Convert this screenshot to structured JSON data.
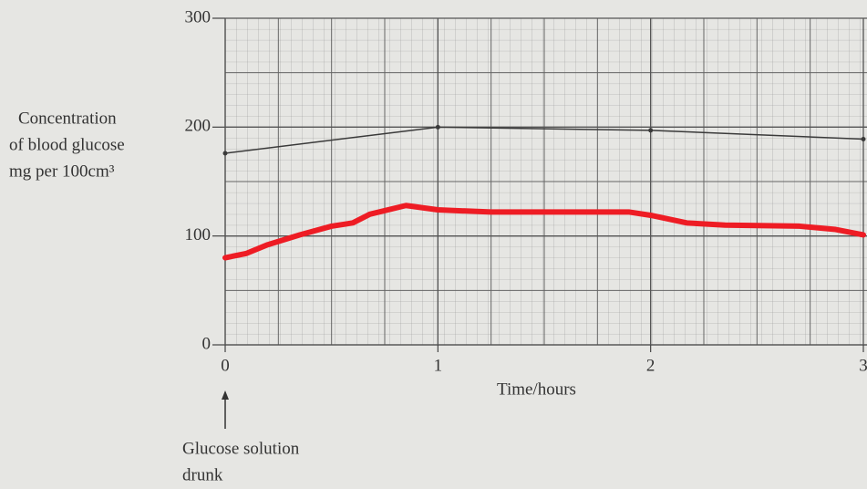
{
  "chart_data": {
    "type": "line",
    "y_label": [
      "Concentration",
      "of blood glucose",
      "mg per 100cm³"
    ],
    "x_label": "Time/hours",
    "annotation": [
      "Glucose solution",
      "drunk"
    ],
    "xlim": [
      0,
      3
    ],
    "xticks": [
      0,
      1,
      2,
      3
    ],
    "ylim": [
      0,
      300
    ],
    "yticks": [
      0,
      100,
      200,
      300
    ],
    "grid": true,
    "series": [
      {
        "color": "#3a3a3a",
        "width": 1.5,
        "markers": true,
        "x": [
          0,
          1,
          2,
          3
        ],
        "values": [
          176,
          200,
          197,
          189
        ]
      },
      {
        "color": "#ee1c24",
        "width": 6,
        "markers": false,
        "x": [
          0,
          0.1,
          0.2,
          0.35,
          0.5,
          0.6,
          0.68,
          0.85,
          1,
          1.25,
          1.6,
          1.9,
          2,
          2.17,
          2.35,
          2.7,
          2.87,
          3
        ],
        "values": [
          80,
          84,
          92,
          101,
          109,
          112,
          120,
          128,
          124,
          122,
          122,
          122,
          119,
          112,
          110,
          109,
          106,
          101
        ]
      }
    ]
  }
}
